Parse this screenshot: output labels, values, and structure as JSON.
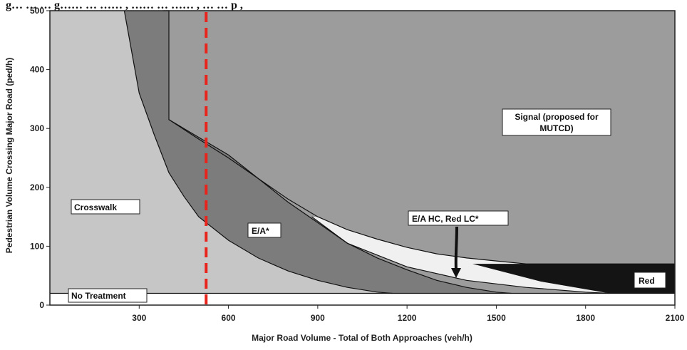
{
  "caption": {
    "text": "g… … … g…… … …… , …… … …… , … … p ,"
  },
  "chart_data": {
    "type": "area",
    "title": "",
    "xlabel": "Major Road Volume - Total of Both Approaches (veh/h)",
    "ylabel": "Pedestrian Volume Crossing Major Road (ped/h)",
    "xlim": [
      0,
      2100
    ],
    "ylim": [
      0,
      500
    ],
    "xticks": [
      "300",
      "600",
      "900",
      "1200",
      "1500",
      "1800",
      "2100"
    ],
    "yticks": [
      "0",
      "100",
      "200",
      "300",
      "400",
      "500"
    ],
    "grid": false,
    "boundaries": {
      "no_treatment_max_ped": 20,
      "crosswalk_upper": {
        "x": [
          250,
          300,
          350,
          400,
          450,
          500,
          600,
          700,
          800,
          900,
          1000,
          1100,
          1150
        ],
        "y": [
          500,
          360,
          290,
          225,
          185,
          150,
          110,
          80,
          58,
          42,
          30,
          22,
          20
        ]
      },
      "ea_upper": {
        "x": [
          380,
          400,
          400,
          500,
          600,
          700,
          800,
          900,
          1000,
          1100,
          1200,
          1300,
          1400,
          1500,
          1550
        ],
        "y": [
          500,
          500,
          315,
          285,
          255,
          215,
          175,
          140,
          105,
          80,
          60,
          42,
          30,
          22,
          20
        ]
      },
      "signal_lower": {
        "x": [
          400,
          500,
          600,
          700,
          800,
          900,
          1000,
          1100,
          1200,
          1300,
          1400,
          1500,
          1600,
          2100
        ],
        "y": [
          315,
          282,
          250,
          215,
          180,
          150,
          128,
          112,
          98,
          87,
          80,
          75,
          70,
          70
        ]
      },
      "hc_lower": {
        "x": [
          880,
          1000,
          1200,
          1400,
          1600,
          1800,
          1880
        ],
        "y": [
          150,
          105,
          65,
          42,
          30,
          22,
          20
        ]
      }
    },
    "regions": [
      {
        "name": "No Treatment",
        "color": "#ffffff"
      },
      {
        "name": "Crosswalk",
        "color": "#c6c6c6"
      },
      {
        "name": "E/A*",
        "color": "#7c7c7c"
      },
      {
        "name": "E/A HC, Red LC*",
        "color": "#f0f0f0"
      },
      {
        "name": "Red",
        "color": "#141414"
      },
      {
        "name": "Signal (proposed for MUTCD)",
        "color": "#9c9c9c"
      }
    ],
    "labels": {
      "no_treatment": "No Treatment",
      "crosswalk": "Crosswalk",
      "ea": "E/A*",
      "ea_hc": "E/A HC, Red LC*",
      "red": "Red",
      "signal_line1": "Signal (proposed for",
      "signal_line2": "MUTCD)"
    },
    "reference_line": {
      "x": 525,
      "color": "#e8241c",
      "style": "dashed"
    }
  }
}
